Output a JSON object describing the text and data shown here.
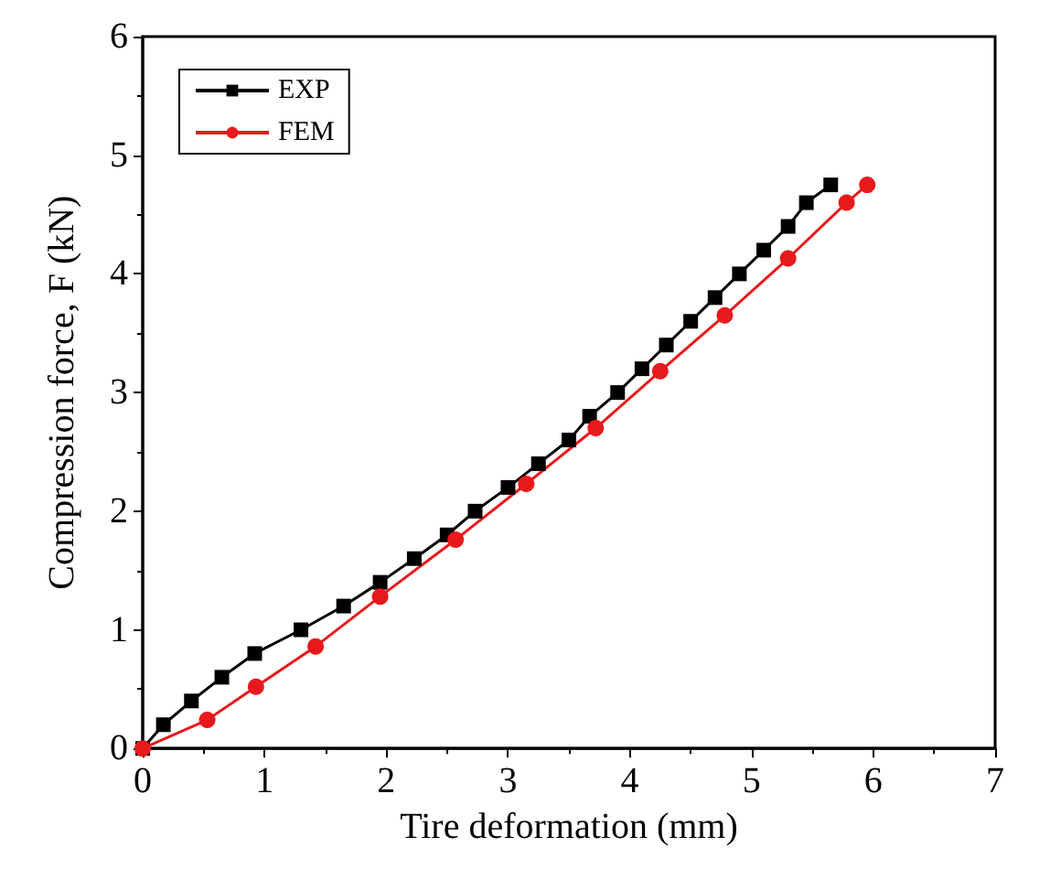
{
  "chart_data": {
    "type": "line",
    "xlabel": "Tire deformation (mm)",
    "ylabel": "Compression force, F (kN)",
    "xlim": [
      0,
      7
    ],
    "xticks": [
      0,
      1,
      2,
      3,
      4,
      5,
      6,
      7
    ],
    "ylim": [
      0,
      6
    ],
    "yticks": [
      0,
      1,
      2,
      3,
      4,
      5,
      6
    ],
    "grid": false,
    "legend": "top left",
    "series": [
      {
        "name": "EXP",
        "color": "#000000",
        "marker": "square",
        "x": [
          0,
          0.17,
          0.4,
          0.65,
          0.92,
          1.3,
          1.65,
          1.95,
          2.23,
          2.5,
          2.73,
          3.0,
          3.25,
          3.5,
          3.67,
          3.9,
          4.1,
          4.3,
          4.5,
          4.7,
          4.9,
          5.1,
          5.3,
          5.45,
          5.65
        ],
        "values": [
          0,
          0.2,
          0.4,
          0.6,
          0.8,
          1.0,
          1.2,
          1.4,
          1.6,
          1.8,
          2.0,
          2.2,
          2.4,
          2.6,
          2.8,
          3.0,
          3.2,
          3.4,
          3.6,
          3.8,
          4.0,
          4.2,
          4.4,
          4.6,
          4.75
        ]
      },
      {
        "name": "FEM",
        "color": "#e8191c",
        "marker": "circle",
        "x": [
          0,
          0.53,
          0.93,
          1.42,
          1.95,
          2.57,
          3.15,
          3.72,
          4.25,
          4.78,
          5.3,
          5.78,
          5.95
        ],
        "values": [
          0,
          0.24,
          0.52,
          0.86,
          1.28,
          1.76,
          2.23,
          2.7,
          3.18,
          3.65,
          4.13,
          4.6,
          4.75
        ]
      }
    ]
  }
}
